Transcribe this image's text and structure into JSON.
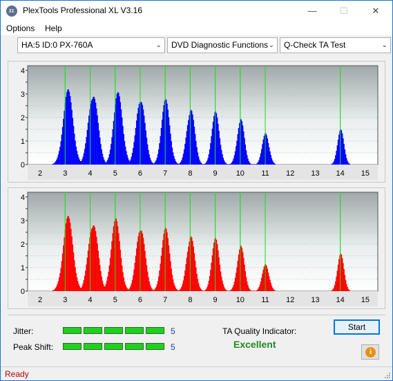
{
  "window": {
    "title": "PlexTools Professional XL V3.16",
    "app_icon_text": "XL",
    "minimize": "—",
    "maximize": "☐",
    "close": "✕"
  },
  "menu": {
    "options": "Options",
    "help": "Help"
  },
  "toolbar": {
    "drive": "HA:5 ID:0  PX-760A",
    "function": "DVD Diagnostic Functions",
    "test": "Q-Check TA Test"
  },
  "chart_data": [
    {
      "type": "bar",
      "name_hint": "jitter-histogram-top",
      "color": "#0000ff",
      "x_ticks": [
        2,
        3,
        4,
        5,
        6,
        7,
        8,
        9,
        10,
        11,
        12,
        13,
        14,
        15
      ],
      "y_ticks": [
        0,
        0.5,
        1,
        1.5,
        2,
        2.5,
        3,
        3.5,
        4
      ],
      "ylim": [
        0,
        4.2
      ],
      "xlim": [
        1.5,
        15.5
      ],
      "green_lines": [
        3,
        4,
        5,
        6,
        7,
        8,
        9,
        10,
        11,
        14
      ],
      "peaks": [
        {
          "center": 3.1,
          "height": 3.2
        },
        {
          "center": 4.1,
          "height": 3.2
        },
        {
          "center": 5.1,
          "height": 3.1
        },
        {
          "center": 6.0,
          "height": 3.0
        },
        {
          "center": 7.0,
          "height": 2.8
        },
        {
          "center": 8.0,
          "height": 2.5
        },
        {
          "center": 9.0,
          "height": 2.3
        },
        {
          "center": 10.0,
          "height": 2.0
        },
        {
          "center": 11.0,
          "height": 1.4
        },
        {
          "center": 14.0,
          "height": 1.5
        }
      ]
    },
    {
      "type": "bar",
      "name_hint": "peak-shift-histogram-bottom",
      "color": "#ff0000",
      "x_ticks": [
        2,
        3,
        4,
        5,
        6,
        7,
        8,
        9,
        10,
        11,
        12,
        13,
        14,
        15
      ],
      "y_ticks": [
        0,
        0.5,
        1,
        1.5,
        2,
        2.5,
        3,
        3.5,
        4
      ],
      "ylim": [
        0,
        4.2
      ],
      "xlim": [
        1.5,
        15.5
      ],
      "green_lines": [
        3,
        4,
        5,
        6,
        7,
        8,
        9,
        10,
        11,
        14
      ],
      "peaks": [
        {
          "center": 3.1,
          "height": 3.2
        },
        {
          "center": 4.1,
          "height": 3.1
        },
        {
          "center": 5.0,
          "height": 3.1
        },
        {
          "center": 6.0,
          "height": 2.9
        },
        {
          "center": 7.0,
          "height": 2.7
        },
        {
          "center": 8.0,
          "height": 2.5
        },
        {
          "center": 9.0,
          "height": 2.3
        },
        {
          "center": 10.0,
          "height": 2.0
        },
        {
          "center": 11.0,
          "height": 1.2
        },
        {
          "center": 14.0,
          "height": 1.6
        }
      ]
    }
  ],
  "results": {
    "jitter_label": "Jitter:",
    "jitter_value": "5",
    "jitter_segments": 5,
    "peak_shift_label": "Peak Shift:",
    "peak_shift_value": "5",
    "peak_shift_segments": 5,
    "ta_label": "TA Quality Indicator:",
    "ta_value": "Excellent"
  },
  "buttons": {
    "start": "Start",
    "info": "i"
  },
  "status": {
    "text": "Ready"
  }
}
